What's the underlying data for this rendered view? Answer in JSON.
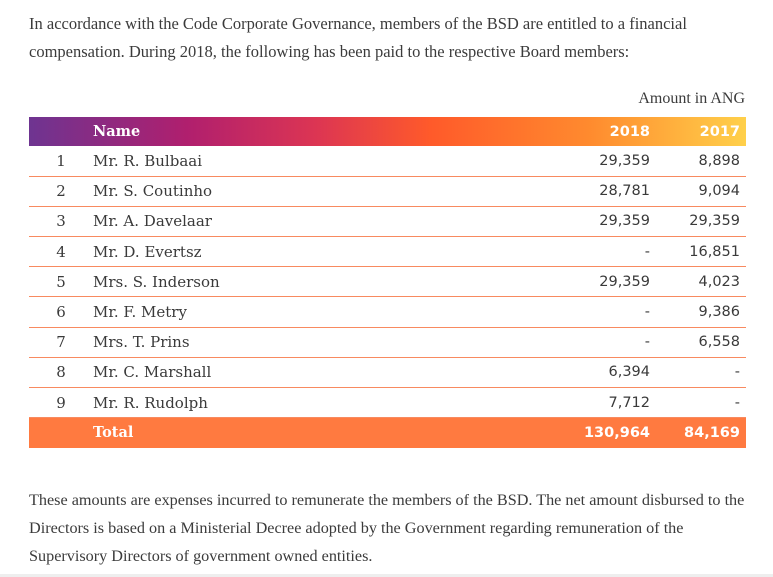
{
  "intro_text": "In accordance with the Code Corporate Governance, members of the BSD are entitled to a financial compensation. During 2018, the following has been paid to the respective Board members:",
  "unit_label": "Amount in ANG",
  "table": {
    "headers": {
      "no": "",
      "name": "Name",
      "y2018": "2018",
      "y2017": "2017"
    },
    "rows": [
      {
        "no": "1",
        "name": "Mr. R. Bulbaai",
        "y2018": "29,359",
        "y2017": "8,898"
      },
      {
        "no": "2",
        "name": "Mr. S. Coutinho",
        "y2018": "28,781",
        "y2017": "9,094"
      },
      {
        "no": "3",
        "name": "Mr. A. Davelaar",
        "y2018": "29,359",
        "y2017": "29,359"
      },
      {
        "no": "4",
        "name": "Mr. D. Evertsz",
        "y2018": "-",
        "y2017": "16,851"
      },
      {
        "no": "5",
        "name": "Mrs. S. Inderson",
        "y2018": "29,359",
        "y2017": "4,023"
      },
      {
        "no": "6",
        "name": "Mr. F. Metry",
        "y2018": "-",
        "y2017": "9,386"
      },
      {
        "no": "7",
        "name": "Mrs. T. Prins",
        "y2018": "-",
        "y2017": "6,558"
      },
      {
        "no": "8",
        "name": "Mr. C. Marshall",
        "y2018": "6,394",
        "y2017": "-"
      },
      {
        "no": "9",
        "name": "Mr. R. Rudolph",
        "y2018": "7,712",
        "y2017": "-"
      }
    ],
    "total": {
      "label": "Total",
      "y2018": "130,964",
      "y2017": "84,169"
    }
  },
  "outro_text": "These amounts are expenses incurred to remunerate the members of the BSD. The net amount disbursed to the Directors is based on a Ministerial Decree adopted by the Government regarding remuneration of the Supervisory Directors of government owned entities.",
  "colors": {
    "gradient_start": "#6e3491",
    "gradient_mid": "#ff5a2a",
    "gradient_end": "#ffd04a",
    "total_row": "#ff7a40",
    "row_rule": "#f88a60"
  }
}
